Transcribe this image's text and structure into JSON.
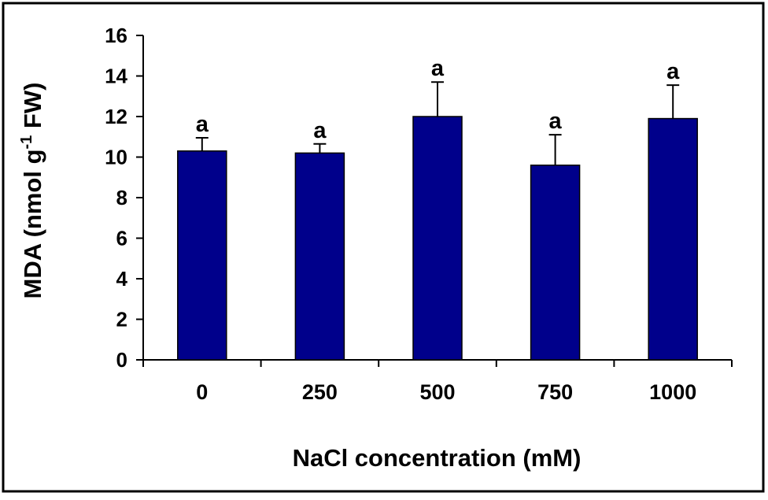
{
  "chart_data": {
    "type": "bar",
    "title": "",
    "xlabel": "NaCl concentration (mM)",
    "ylabel": {
      "main": "MDA (nmol g",
      "superscript": "-1",
      "tail": " FW)"
    },
    "categories": [
      "0",
      "250",
      "500",
      "750",
      "1000"
    ],
    "series": [
      {
        "values": [
          10.3,
          10.2,
          12.0,
          9.6,
          11.9
        ],
        "error": [
          0.65,
          0.45,
          1.7,
          1.5,
          1.65
        ],
        "significance": [
          "a",
          "a",
          "a",
          "a",
          "a"
        ],
        "color": "#00008b"
      }
    ],
    "ylim": [
      0,
      16
    ],
    "yticks": [
      "0",
      "2",
      "4",
      "6",
      "8",
      "10",
      "12",
      "14",
      "16"
    ],
    "grid": false,
    "legend": "none"
  }
}
